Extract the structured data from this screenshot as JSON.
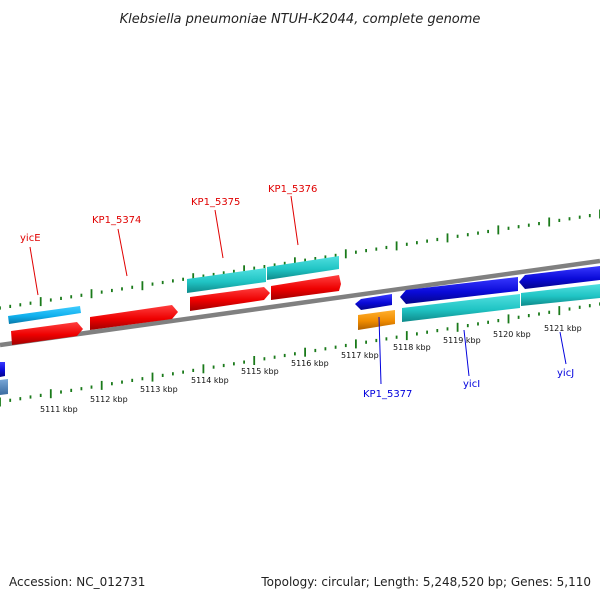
{
  "title": "Klebsiella pneumoniae NTUH-K2044, complete genome",
  "footer": {
    "accession": "Accession: NC_012731",
    "summary": "Topology: circular; Length: 5,248,520 bp; Genes: 5,110"
  },
  "scale_labels": [
    "5111 kbp",
    "5112 kbp",
    "5113 kbp",
    "5114 kbp",
    "5115 kbp",
    "5116 kbp",
    "5117 kbp",
    "5118 kbp",
    "5119 kbp",
    "5120 kbp",
    "5121 kbp"
  ],
  "gene_labels": {
    "yicE": "yicE",
    "kp1_5374": "KP1_5374",
    "kp1_5375": "KP1_5375",
    "kp1_5376": "KP1_5376",
    "kp1_5377": "KP1_5377",
    "yicI": "yicI",
    "yicJ": "yicJ"
  },
  "colors": {
    "red_gene": "#f00000",
    "cyan_gene": "#1ec8c8",
    "lightblue_gene": "#10b4f0",
    "blue_gene": "#0a0ad8",
    "orange_gene": "#f09000",
    "backbone": "#808080",
    "ticks": "#1a7a1a"
  }
}
